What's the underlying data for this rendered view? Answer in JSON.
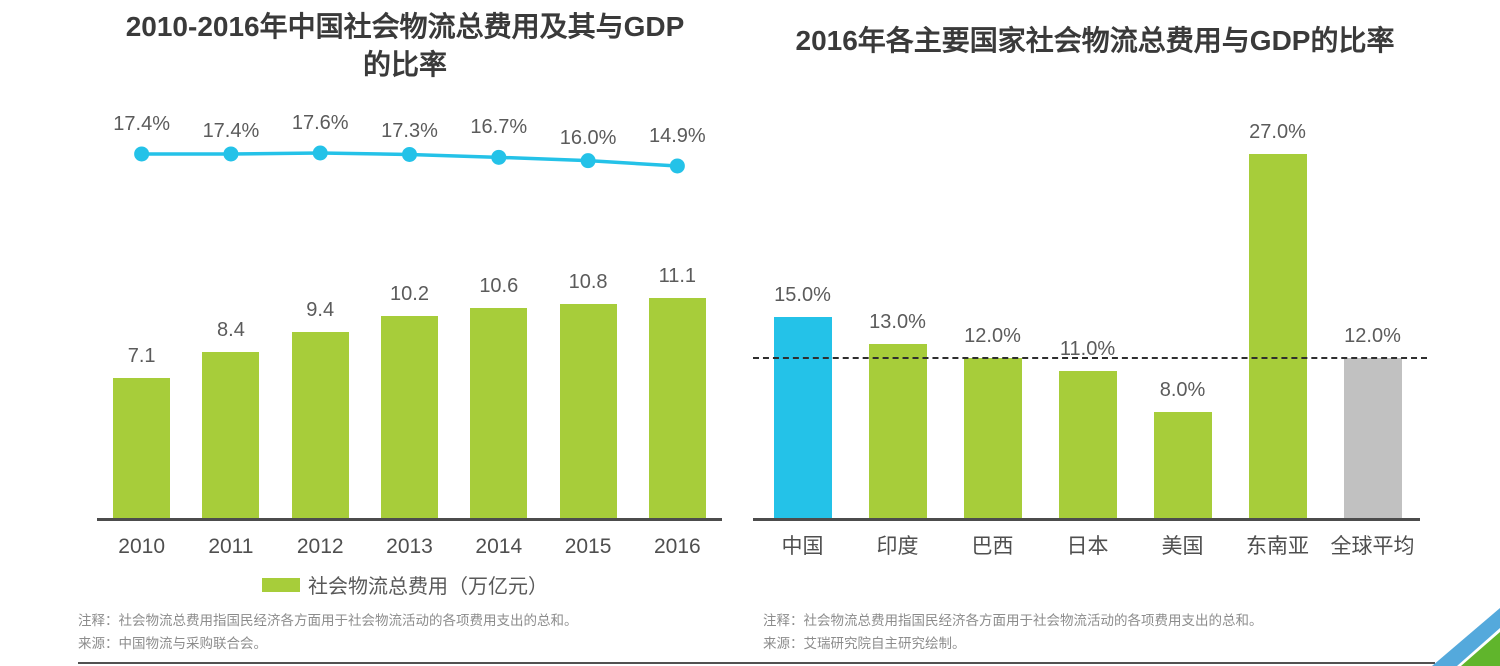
{
  "page": {
    "background": "#ffffff",
    "accent_green": "#a7cd3a",
    "accent_cyan": "#24c2e8",
    "neutral_gray": "#c1c1c1",
    "corner_blue": "#54a9dc",
    "corner_green": "#60b52c"
  },
  "chart_data": [
    {
      "type": "bar+line",
      "title": "2010-2016年中国社会物流总费用及其与GDP的比率",
      "categories": [
        "2010",
        "2011",
        "2012",
        "2013",
        "2014",
        "2015",
        "2016"
      ],
      "series": [
        {
          "type": "bar",
          "name": "社会物流总费用（万亿元）",
          "color": "#a7cd3a",
          "values": [
            7.1,
            8.4,
            9.4,
            10.2,
            10.6,
            10.8,
            11.1
          ],
          "labels": [
            "7.1",
            "8.4",
            "9.4",
            "10.2",
            "10.6",
            "10.8",
            "11.1"
          ]
        },
        {
          "type": "line",
          "name": "",
          "color": "#24c2e8",
          "values": [
            17.4,
            17.4,
            17.6,
            17.3,
            16.7,
            16.0,
            14.9
          ],
          "labels": [
            "17.4%",
            "17.4%",
            "17.6%",
            "17.3%",
            "16.7%",
            "16.0%",
            "14.9%"
          ]
        }
      ],
      "legend": [
        {
          "label": "社会物流总费用（万亿元）",
          "color": "#a7cd3a"
        }
      ],
      "grid": false,
      "legend_position": "bottom-center",
      "notes": [
        "注释：社会物流总费用指国民经济各方面用于社会物流活动的各项费用支出的总和。",
        "来源：中国物流与采购联合会。"
      ]
    },
    {
      "type": "bar",
      "title": "2016年各主要国家社会物流总费用与GDP的比率",
      "categories": [
        "中国",
        "印度",
        "巴西",
        "日本",
        "美国",
        "东南亚",
        "全球平均"
      ],
      "values": [
        15.0,
        13.0,
        12.0,
        11.0,
        8.0,
        27.0,
        12.0
      ],
      "labels": [
        "15.0%",
        "13.0%",
        "12.0%",
        "11.0%",
        "8.0%",
        "27.0%",
        "12.0%"
      ],
      "bar_colors": [
        "#24c2e8",
        "#a7cd3a",
        "#a7cd3a",
        "#a7cd3a",
        "#a7cd3a",
        "#a7cd3a",
        "#c1c1c1"
      ],
      "reference_line": {
        "value": 12.0,
        "style": "dashed",
        "color": "#2e2e2e"
      },
      "grid": false,
      "notes": [
        "注释：社会物流总费用指国民经济各方面用于社会物流活动的各项费用支出的总和。",
        "来源：艾瑞研究院自主研究绘制。"
      ]
    }
  ]
}
